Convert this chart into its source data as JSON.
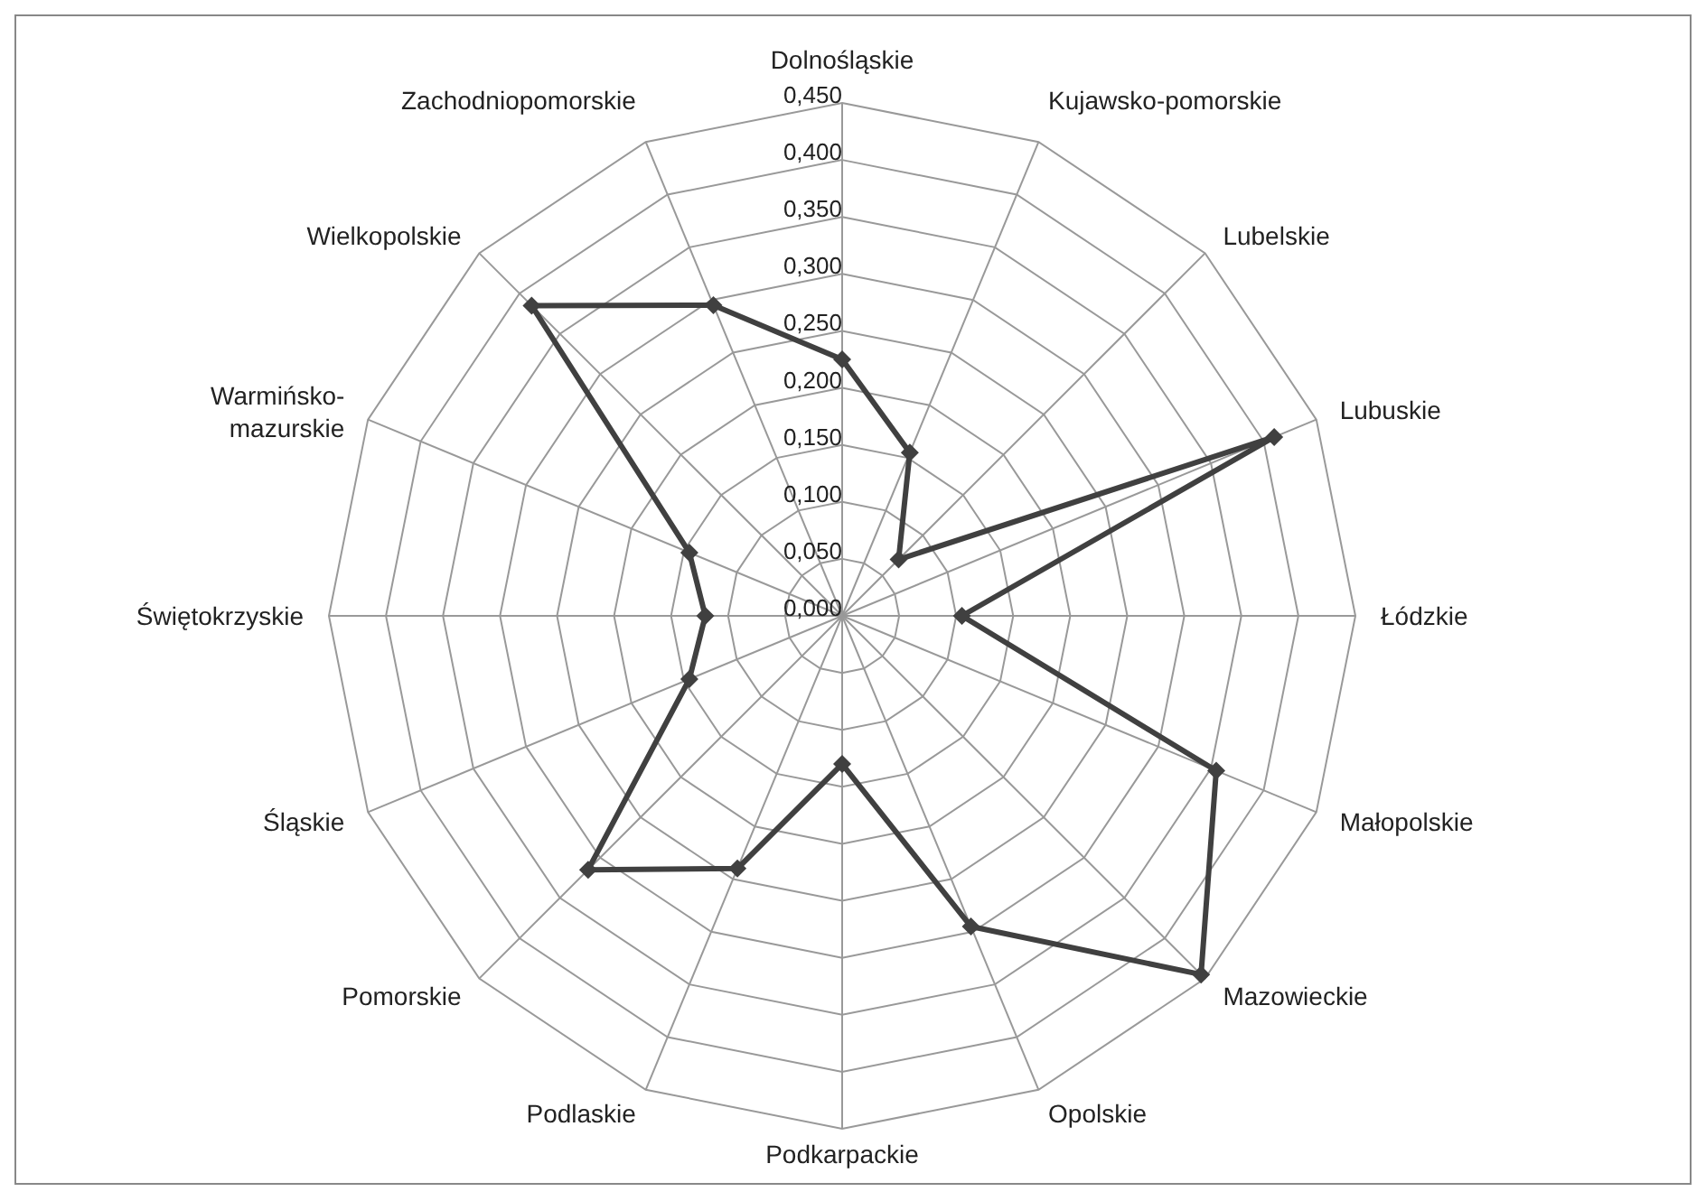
{
  "chart_data": {
    "type": "radar",
    "categories": [
      "Dolnośląskie",
      "Kujawsko-pomorskie",
      "Lubelskie",
      "Lubuskie",
      "Łódzkie",
      "Małopolskie",
      "Mazowieckie",
      "Opolskie",
      "Podkarpackie",
      "Podlaskie",
      "Pomorskie",
      "Śląskie",
      "Świętokrzyskie",
      "Warmińsko-mazurskie",
      "Wielkopolskie",
      "Zachodniopomorskie"
    ],
    "series": [
      {
        "color": "#404040",
        "values": [
          0.225,
          0.155,
          0.07,
          0.41,
          0.105,
          0.355,
          0.445,
          0.295,
          0.13,
          0.24,
          0.315,
          0.145,
          0.12,
          0.145,
          0.385,
          0.295
        ]
      }
    ],
    "ylim": [
      0,
      0.45
    ],
    "yticks": [
      {
        "value": 0,
        "label": "0,000"
      },
      {
        "value": 0.05,
        "label": "0,050"
      },
      {
        "value": 0.1,
        "label": "0,100"
      },
      {
        "value": 0.15,
        "label": "0,150"
      },
      {
        "value": 0.2,
        "label": "0,200"
      },
      {
        "value": 0.25,
        "label": "0,250"
      },
      {
        "value": 0.3,
        "label": "0,300"
      },
      {
        "value": 0.35,
        "label": "0,350"
      },
      {
        "value": 0.4,
        "label": "0,400"
      },
      {
        "value": 0.45,
        "label": "0,450"
      }
    ],
    "grid": true,
    "marker": "diamond",
    "line_style": "solid",
    "legend": false
  }
}
